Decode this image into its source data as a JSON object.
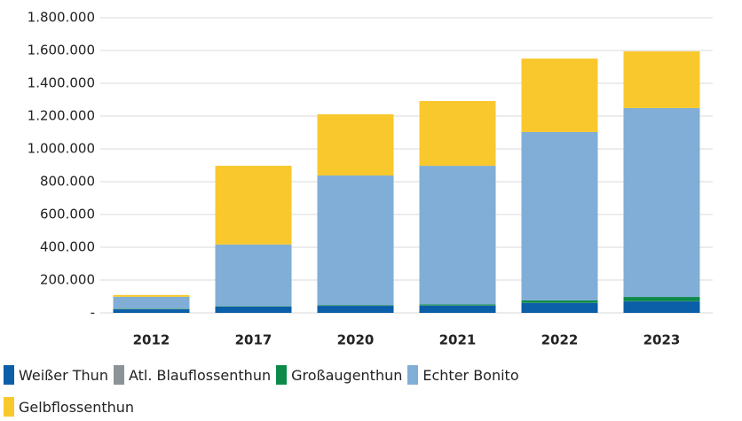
{
  "chart_data": {
    "type": "stacked_bar",
    "categories": [
      "2012",
      "2017",
      "2020",
      "2021",
      "2022",
      "2023"
    ],
    "series": [
      {
        "name": "Weißer Thun",
        "color": "#0b5ea8",
        "values": [
          22000,
          38000,
          43000,
          44000,
          60000,
          70000
        ]
      },
      {
        "name": "Atl. Blauflossenthun",
        "color": "#8c9396",
        "values": [
          1000,
          1000,
          1000,
          1000,
          1000,
          1000
        ]
      },
      {
        "name": "Großaugenthun",
        "color": "#0c8a4a",
        "values": [
          3000,
          3000,
          4000,
          7000,
          15000,
          26000
        ]
      },
      {
        "name": "Echter Bonito",
        "color": "#80aed6",
        "values": [
          72000,
          375000,
          790000,
          845000,
          1027000,
          1152000
        ]
      },
      {
        "name": "Gelbflossenthun",
        "color": "#f9c82d",
        "values": [
          11000,
          480000,
          373000,
          395000,
          448000,
          346000
        ]
      }
    ],
    "ylim": [
      0,
      1800000
    ],
    "yticks": [
      {
        "value": 0,
        "label": "-"
      },
      {
        "value": 200000,
        "label": "200.000"
      },
      {
        "value": 400000,
        "label": "400.000"
      },
      {
        "value": 600000,
        "label": "600.000"
      },
      {
        "value": 800000,
        "label": "800.000"
      },
      {
        "value": 1000000,
        "label": "1.000.000"
      },
      {
        "value": 1200000,
        "label": "1.200.000"
      },
      {
        "value": 1400000,
        "label": "1.400.000"
      },
      {
        "value": 1600000,
        "label": "1.600.000"
      },
      {
        "value": 1800000,
        "label": "1.800.000"
      }
    ],
    "grid": true
  }
}
